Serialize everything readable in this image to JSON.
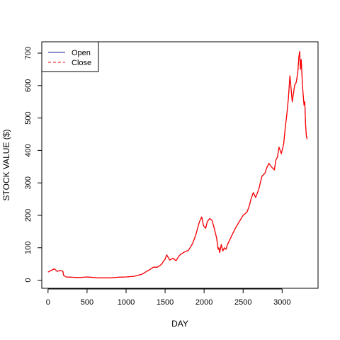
{
  "chart_data": {
    "type": "line",
    "title": "",
    "xlabel": "DAY",
    "ylabel": "STOCK VALUE ($)",
    "xlim": [
      -80,
      3460
    ],
    "ylim": [
      -25,
      735
    ],
    "x_ticks": [
      0,
      500,
      1000,
      1500,
      2000,
      2500,
      3000
    ],
    "y_ticks": [
      0,
      100,
      200,
      300,
      400,
      500,
      600,
      700
    ],
    "legend": {
      "position": "top-left",
      "open_label": "Open",
      "close_label": "Close"
    },
    "colors": {
      "open": "#1a1a8c",
      "close": "#ff0000",
      "axis": "#000000",
      "background": "#ffffff"
    },
    "grid": false,
    "series": [
      {
        "name": "Open",
        "line_style": "solid",
        "x": [
          0,
          40,
          80,
          120,
          150,
          190,
          200,
          230,
          300,
          400,
          500,
          600,
          650,
          700,
          800,
          900,
          1000,
          1100,
          1200,
          1250,
          1300,
          1350,
          1400,
          1450,
          1500,
          1520,
          1540,
          1560,
          1600,
          1640,
          1680,
          1700,
          1750,
          1800,
          1850,
          1880,
          1900,
          1940,
          1970,
          1990,
          2000,
          2020,
          2040,
          2070,
          2100,
          2130,
          2160,
          2180,
          2190,
          2200,
          2220,
          2240,
          2260,
          2280,
          2300,
          2330,
          2360,
          2400,
          2450,
          2500,
          2550,
          2580,
          2600,
          2630,
          2660,
          2700,
          2740,
          2780,
          2800,
          2830,
          2860,
          2880,
          2900,
          2920,
          2940,
          2960,
          2990,
          3020,
          3040,
          3060,
          3080,
          3100,
          3130,
          3160,
          3180,
          3200,
          3215,
          3225,
          3235,
          3245,
          3260,
          3280,
          3290,
          3300,
          3310,
          3320
        ],
        "y": [
          25,
          30,
          35,
          27,
          30,
          28,
          15,
          10,
          9,
          8,
          10,
          8,
          7,
          7,
          7,
          9,
          10,
          12,
          18,
          25,
          32,
          40,
          40,
          48,
          65,
          78,
          70,
          62,
          68,
          60,
          75,
          80,
          87,
          92,
          112,
          130,
          145,
          180,
          195,
          170,
          165,
          160,
          180,
          190,
          185,
          160,
          130,
          95,
          100,
          85,
          110,
          90,
          100,
          95,
          110,
          125,
          140,
          160,
          180,
          200,
          210,
          230,
          250,
          270,
          255,
          280,
          320,
          330,
          345,
          360,
          350,
          345,
          340,
          370,
          380,
          410,
          390,
          420,
          470,
          510,
          560,
          630,
          550,
          600,
          610,
          640,
          690,
          705,
          650,
          680,
          600,
          540,
          550,
          480,
          445,
          435
        ]
      },
      {
        "name": "Close",
        "line_style": "dashed",
        "x": [
          0,
          40,
          80,
          120,
          150,
          190,
          200,
          230,
          300,
          400,
          500,
          600,
          650,
          700,
          800,
          900,
          1000,
          1100,
          1200,
          1250,
          1300,
          1350,
          1400,
          1450,
          1500,
          1520,
          1540,
          1560,
          1600,
          1640,
          1680,
          1700,
          1750,
          1800,
          1850,
          1880,
          1900,
          1940,
          1970,
          1990,
          2000,
          2020,
          2040,
          2070,
          2100,
          2130,
          2160,
          2180,
          2190,
          2200,
          2220,
          2240,
          2260,
          2280,
          2300,
          2330,
          2360,
          2400,
          2450,
          2500,
          2550,
          2580,
          2600,
          2630,
          2660,
          2700,
          2740,
          2780,
          2800,
          2830,
          2860,
          2880,
          2900,
          2920,
          2940,
          2960,
          2990,
          3020,
          3040,
          3060,
          3080,
          3100,
          3130,
          3160,
          3180,
          3200,
          3215,
          3225,
          3235,
          3245,
          3260,
          3280,
          3290,
          3300,
          3310,
          3320
        ],
        "y": [
          25,
          30,
          35,
          27,
          30,
          28,
          15,
          10,
          9,
          8,
          10,
          8,
          7,
          7,
          7,
          9,
          10,
          12,
          18,
          25,
          32,
          40,
          40,
          48,
          65,
          78,
          70,
          62,
          68,
          60,
          75,
          80,
          87,
          92,
          112,
          130,
          145,
          180,
          195,
          170,
          165,
          160,
          180,
          190,
          185,
          160,
          130,
          95,
          100,
          85,
          110,
          90,
          100,
          95,
          110,
          125,
          140,
          160,
          180,
          200,
          210,
          230,
          250,
          270,
          255,
          280,
          320,
          330,
          345,
          360,
          350,
          345,
          340,
          370,
          380,
          410,
          390,
          420,
          470,
          510,
          560,
          630,
          550,
          600,
          610,
          640,
          690,
          705,
          650,
          680,
          600,
          540,
          550,
          480,
          445,
          435
        ]
      }
    ]
  }
}
